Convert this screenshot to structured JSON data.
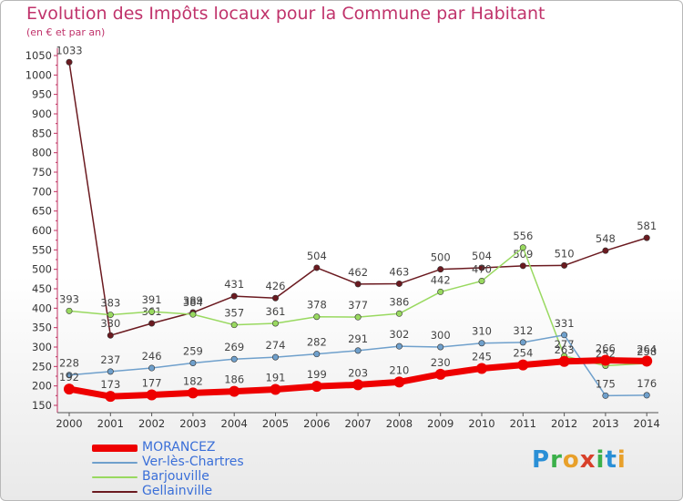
{
  "header": {
    "title": "Evolution des Impôts locaux pour la Commune par Habitant",
    "subtitle": "(en € et par an)"
  },
  "logo": {
    "text": "Proxiti"
  },
  "chart_data": {
    "type": "line",
    "title": "Evolution des Impôts locaux pour la Commune par Habitant",
    "subtitle": "(en € et par an)",
    "xlabel": "",
    "ylabel": "",
    "ylim": [
      150,
      1050
    ],
    "yticks": [
      150,
      200,
      250,
      300,
      350,
      400,
      450,
      500,
      550,
      600,
      650,
      700,
      750,
      800,
      850,
      900,
      950,
      1000,
      1050
    ],
    "categories": [
      "2000",
      "2001",
      "2002",
      "2003",
      "2004",
      "2005",
      "2006",
      "2007",
      "2008",
      "2009",
      "2010",
      "2011",
      "2012",
      "2013",
      "2014"
    ],
    "grid": false,
    "legend_position": "bottom-left",
    "series": [
      {
        "name": "Gellainville",
        "color": "#6b1a20",
        "width": 1.5,
        "values": [
          1033,
          330,
          361,
          389,
          431,
          426,
          504,
          462,
          463,
          500,
          504,
          509,
          510,
          548,
          581
        ]
      },
      {
        "name": "Barjouville",
        "color": "#99d960",
        "width": 1.5,
        "values": [
          393,
          383,
          391,
          384,
          357,
          361,
          378,
          377,
          386,
          442,
          470,
          556,
          277,
          252,
          258
        ]
      },
      {
        "name": "Ver-lès-Chartres",
        "color": "#6fa0cc",
        "width": 1.5,
        "values": [
          228,
          237,
          246,
          259,
          269,
          274,
          282,
          291,
          302,
          300,
          310,
          312,
          331,
          175,
          176
        ]
      },
      {
        "name": "MORANCEZ",
        "color": "#ee0000",
        "width": 7,
        "values": [
          192,
          173,
          177,
          182,
          186,
          191,
          199,
          203,
          210,
          230,
          245,
          254,
          263,
          266,
          264
        ]
      }
    ],
    "legend": [
      "MORANCEZ",
      "Ver-lès-Chartres",
      "Barjouville",
      "Gellainville"
    ]
  }
}
